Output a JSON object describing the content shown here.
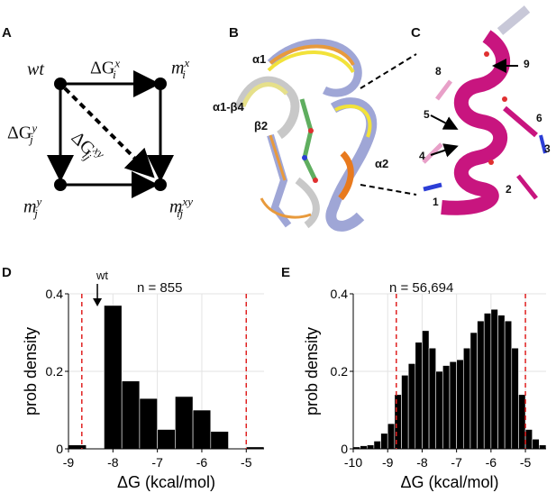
{
  "panels": {
    "A": {
      "letter": "A",
      "nodes": {
        "wt": "wt",
        "mx": "m",
        "mx_sup": "x",
        "mx_sub": "i",
        "my": "m",
        "my_sup": "y",
        "my_sub": "j",
        "mxy": "m",
        "mxy_sup": "xy",
        "mxy_sub": "ij"
      },
      "edges": {
        "top": "ΔG",
        "top_sup": "x",
        "top_sub": "i",
        "left": "ΔG",
        "left_sup": "y",
        "left_sub": "j",
        "diag": "ΔG",
        "diag_sup": "xy",
        "diag_sub": "ij"
      }
    },
    "B": {
      "letter": "B",
      "labels": [
        "α1",
        "α1-β4",
        "β2",
        "α2"
      ]
    },
    "C": {
      "letter": "C",
      "residue_labels": [
        "8",
        "9",
        "5",
        "6",
        "4",
        "3",
        "1",
        "2"
      ]
    },
    "D": {
      "letter": "D",
      "annotation": "n = 855",
      "wt_label": "wt"
    },
    "E": {
      "letter": "E",
      "annotation": "n = 56,694"
    }
  },
  "chart_data": [
    {
      "type": "bar",
      "panel": "D",
      "xlabel": "ΔG (kcal/mol)",
      "ylabel": "prob density",
      "xlim": [
        -9.0,
        -4.6
      ],
      "ylim": [
        0,
        0.4
      ],
      "xticks": [
        -9,
        -8,
        -7,
        -6,
        -5
      ],
      "yticks": [
        0,
        0.2,
        0.4
      ],
      "bin_edges": [
        -9.0,
        -8.6,
        -8.2,
        -7.8,
        -7.4,
        -7.0,
        -6.6,
        -6.2,
        -5.8,
        -5.4,
        -5.0,
        -4.6
      ],
      "values": [
        0.01,
        0.0,
        0.37,
        0.175,
        0.13,
        0.05,
        0.135,
        0.1,
        0.045,
        0.0,
        0.005
      ],
      "threshold_lines": [
        -8.7,
        -5.0
      ],
      "wt_marker": -8.35,
      "grid": true
    },
    {
      "type": "bar",
      "panel": "E",
      "xlabel": "ΔG (kcal/mol)",
      "ylabel": "prob density",
      "xlim": [
        -10.0,
        -4.4
      ],
      "ylim": [
        0,
        0.4
      ],
      "xticks": [
        -10,
        -9,
        -8,
        -7,
        -6,
        -5
      ],
      "yticks": [
        0,
        0.2,
        0.4
      ],
      "bin_edges": [
        -10.0,
        -9.8,
        -9.6,
        -9.4,
        -9.2,
        -9.0,
        -8.8,
        -8.6,
        -8.4,
        -8.2,
        -8.0,
        -7.8,
        -7.6,
        -7.4,
        -7.2,
        -7.0,
        -6.8,
        -6.6,
        -6.4,
        -6.2,
        -6.0,
        -5.8,
        -5.6,
        -5.4,
        -5.2,
        -5.0,
        -4.8,
        -4.6,
        -4.4
      ],
      "values": [
        0.005,
        0.008,
        0.01,
        0.02,
        0.04,
        0.065,
        0.14,
        0.19,
        0.22,
        0.275,
        0.305,
        0.26,
        0.2,
        0.215,
        0.225,
        0.23,
        0.26,
        0.3,
        0.33,
        0.35,
        0.36,
        0.345,
        0.33,
        0.26,
        0.14,
        0.05,
        0.025,
        0.01
      ],
      "threshold_lines": [
        -8.75,
        -5.0
      ],
      "grid": true
    }
  ]
}
